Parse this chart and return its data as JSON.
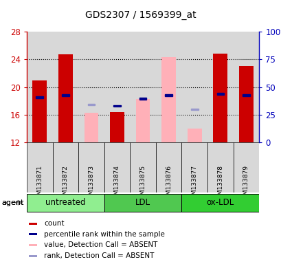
{
  "title": "GDS2307 / 1569399_at",
  "samples": [
    "GSM133871",
    "GSM133872",
    "GSM133873",
    "GSM133874",
    "GSM133875",
    "GSM133876",
    "GSM133877",
    "GSM133878",
    "GSM133879"
  ],
  "groups": [
    {
      "name": "untreated",
      "indices": [
        0,
        1,
        2
      ],
      "color": "#90EE90"
    },
    {
      "name": "LDL",
      "indices": [
        3,
        4,
        5
      ],
      "color": "#50C850"
    },
    {
      "name": "ox-LDL",
      "indices": [
        6,
        7,
        8
      ],
      "color": "#32CD32"
    }
  ],
  "ylim": [
    12,
    28
  ],
  "yticks": [
    12,
    16,
    20,
    24,
    28
  ],
  "right_yticks": [
    0,
    25,
    50,
    75,
    100
  ],
  "right_ylim": [
    0,
    100
  ],
  "red_bars": [
    21.0,
    24.7,
    null,
    16.4,
    null,
    null,
    null,
    24.8,
    23.0
  ],
  "pink_bars": [
    null,
    null,
    16.3,
    null,
    18.3,
    24.3,
    14.0,
    null,
    null
  ],
  "blue_squares": [
    18.5,
    18.8,
    null,
    17.3,
    18.3,
    18.8,
    null,
    19.0,
    18.8
  ],
  "light_blue_squares": [
    null,
    null,
    17.5,
    null,
    null,
    null,
    16.8,
    null,
    null
  ],
  "bar_bottom": 12,
  "bar_width": 0.55,
  "sq_size": 0.28,
  "red_color": "#CC0000",
  "pink_color": "#FFB0B8",
  "blue_color": "#00008B",
  "light_blue_color": "#9999CC",
  "bg_color": "#D8D8D8",
  "left_axis_color": "#CC0000",
  "right_axis_color": "#0000BB",
  "grid_yticks": [
    16,
    20,
    24
  ],
  "legend_items": [
    {
      "color": "#CC0000",
      "label": "count"
    },
    {
      "color": "#00008B",
      "label": "percentile rank within the sample"
    },
    {
      "color": "#FFB0B8",
      "label": "value, Detection Call = ABSENT"
    },
    {
      "color": "#9999CC",
      "label": "rank, Detection Call = ABSENT"
    }
  ]
}
